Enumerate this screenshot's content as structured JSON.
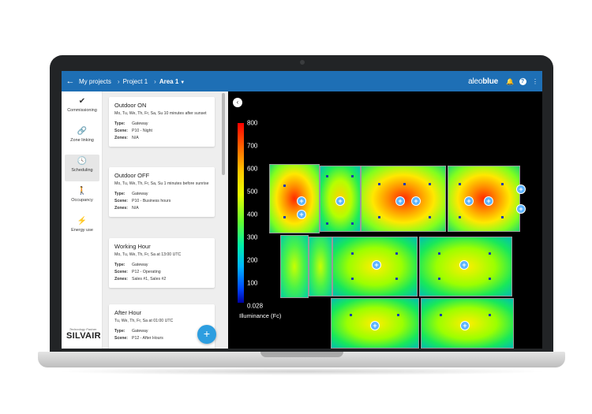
{
  "header": {
    "back_icon": "arrow-left-icon",
    "crumb_projects": "My projects",
    "crumb_project": "Project 1",
    "crumb_area": "Area 1",
    "logo_light": "aleo",
    "logo_bold": "blue",
    "brand_color": "#1e6fb5"
  },
  "nav": {
    "items": [
      {
        "label": "Commissioning",
        "icon": "check-circle-icon"
      },
      {
        "label": "Zone linking",
        "icon": "link-icon"
      },
      {
        "label": "Scheduling",
        "icon": "clock-icon"
      },
      {
        "label": "Occupancy",
        "icon": "person-walking-icon"
      },
      {
        "label": "Energy use",
        "icon": "lightning-icon"
      }
    ],
    "active": "Scheduling",
    "partner_tagline": "Technology Partner",
    "partner_name": "SILVAIR"
  },
  "schedules": [
    {
      "title": "Outdoor ON",
      "desc": "Mo, Tu, We, Th, Fr, Sa, Su 10 minutes after sunset",
      "type_key": "Type:",
      "type": "Gateway",
      "scene_key": "Scene:",
      "scene": "P10 - Night",
      "zones_key": "Zones:",
      "zones": "N/A"
    },
    {
      "title": "Outdoor OFF",
      "desc": "Mo, Tu, We, Th, Fr, Sa, Su 1 minutes before sunrise",
      "type_key": "Type:",
      "type": "Gateway",
      "scene_key": "Scene:",
      "scene": "P10 - Business hours",
      "zones_key": "Zones:",
      "zones": "N/A"
    },
    {
      "title": "Working Hour",
      "desc": "Mo, Tu, We, Th, Fr, Sa at 13:00 UTC",
      "type_key": "Type:",
      "type": "Gateway",
      "scene_key": "Scene:",
      "scene": "P12 - Operating",
      "zones_key": "Zones:",
      "zones": "Sales #1, Sales #2"
    },
    {
      "title": "After Hour",
      "desc": "Tu, We, Th, Fr, Sa at 01:00 UTC",
      "type_key": "Type:",
      "type": "Gateway",
      "scene_key": "Scene:",
      "scene": "P12 - After Hours"
    }
  ],
  "fab_label": "+",
  "map": {
    "collapse_label": "‹",
    "legend_ticks": [
      "800",
      "700",
      "600",
      "500",
      "400",
      "300",
      "200",
      "100",
      "0.028"
    ],
    "legend_label": "Illuminance (Fc)",
    "luminaire_symbol": "+"
  }
}
